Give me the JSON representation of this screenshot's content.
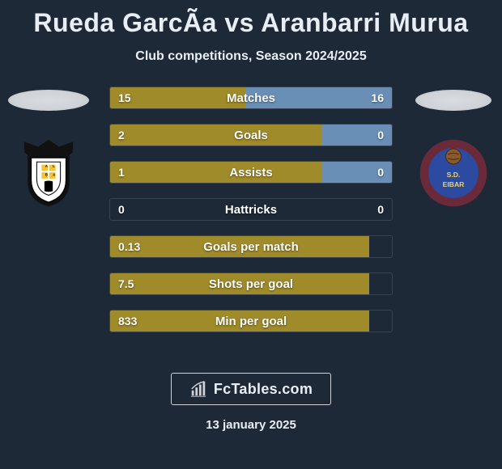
{
  "title": "Rueda GarcÃ­a vs Aranbarri Murua",
  "subtitle": "Club competitions, Season 2024/2025",
  "date": "13 january 2025",
  "brand": {
    "text": "FcTables.com"
  },
  "colors": {
    "left_bar": "#a08b2a",
    "right_bar": "#6a8fb6",
    "row_border": "rgba(255,255,255,0.12)",
    "background": "#1e2938"
  },
  "clubs": {
    "left": {
      "name": "Albacete",
      "badge": {
        "shape": "shield",
        "primary": "#ffffff",
        "secondary": "#000000",
        "accent": "#f4c430",
        "wings": "#111111"
      }
    },
    "right": {
      "name": "Eibar",
      "badge": {
        "shape": "circle",
        "primary": "#6b2a3a",
        "secondary": "#2b4aa0",
        "ball": "#8a5a2a"
      }
    }
  },
  "rows": [
    {
      "label": "Matches",
      "left_val": "15",
      "right_val": "16",
      "left_pct": 48,
      "right_pct": 52
    },
    {
      "label": "Goals",
      "left_val": "2",
      "right_val": "0",
      "left_pct": 75,
      "right_pct": 25
    },
    {
      "label": "Assists",
      "left_val": "1",
      "right_val": "0",
      "left_pct": 75,
      "right_pct": 25
    },
    {
      "label": "Hattricks",
      "left_val": "0",
      "right_val": "0",
      "left_pct": 0,
      "right_pct": 0
    },
    {
      "label": "Goals per match",
      "left_val": "0.13",
      "right_val": "",
      "left_pct": 92,
      "right_pct": 0
    },
    {
      "label": "Shots per goal",
      "left_val": "7.5",
      "right_val": "",
      "left_pct": 92,
      "right_pct": 0
    },
    {
      "label": "Min per goal",
      "left_val": "833",
      "right_val": "",
      "left_pct": 92,
      "right_pct": 0
    }
  ]
}
